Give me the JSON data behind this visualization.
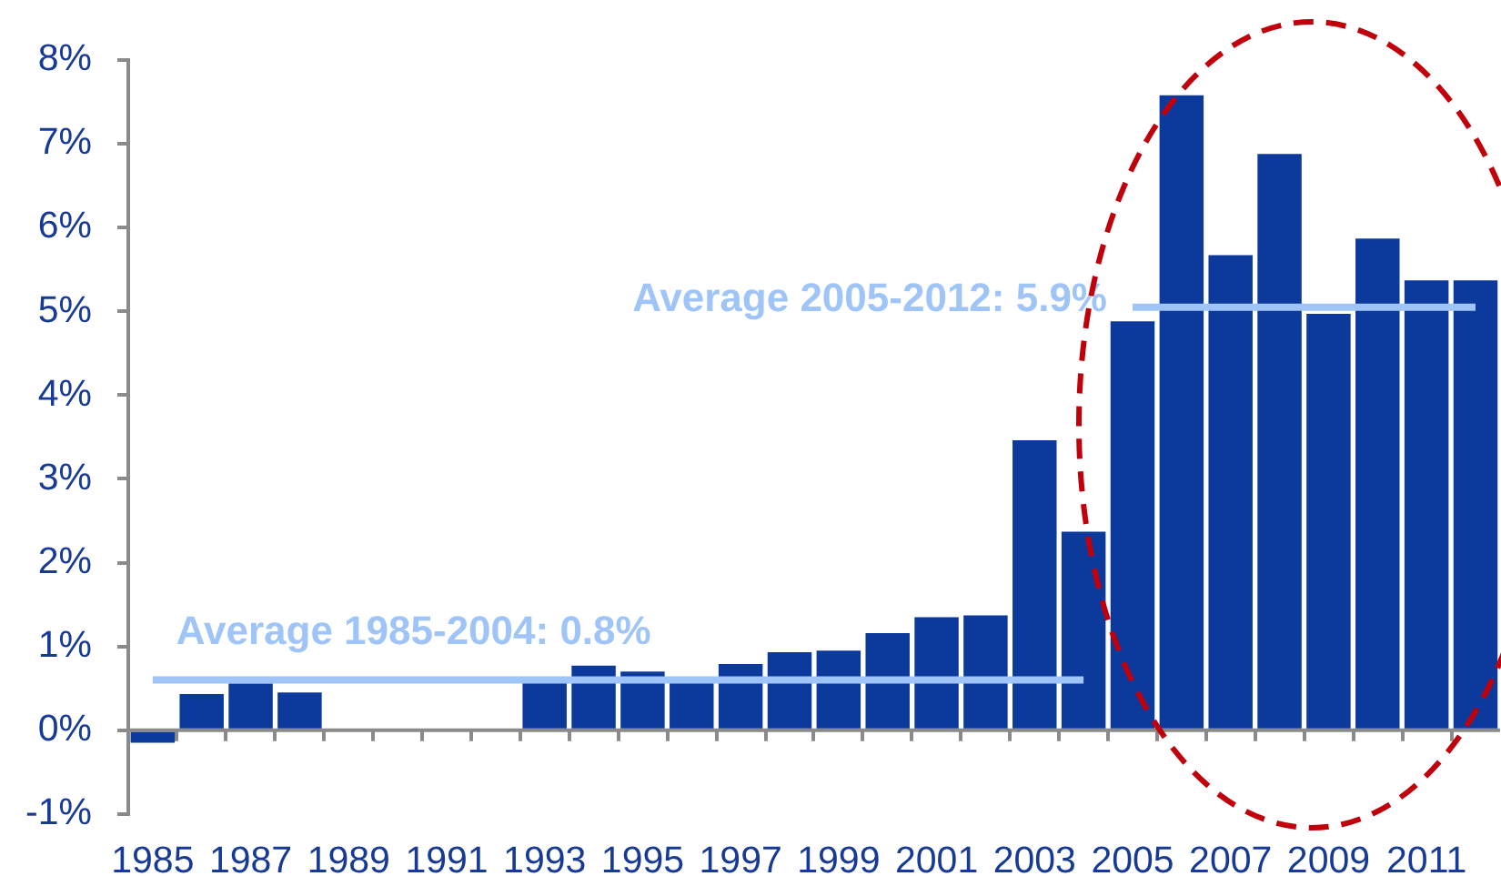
{
  "chart_data": {
    "type": "bar",
    "categories": [
      "1985",
      null,
      "1987",
      null,
      "1989",
      null,
      "1991",
      null,
      "1993",
      null,
      "1995",
      null,
      "1997",
      null,
      "1999",
      null,
      "2001",
      null,
      "2003",
      null,
      "2005",
      null,
      "2007",
      null,
      "2009",
      null,
      "2011",
      null
    ],
    "series": [
      {
        "type": "bar",
        "color": "#0b399c",
        "values": [
          -0.15,
          0.43,
          0.56,
          0.45,
          null,
          null,
          null,
          null,
          0.6,
          0.77,
          0.7,
          0.58,
          0.79,
          0.93,
          0.95,
          1.16,
          1.35,
          1.37,
          3.46,
          2.37,
          4.88,
          7.58,
          5.67,
          6.88,
          4.97,
          5.87,
          5.37,
          5.37
        ]
      },
      {
        "type": "line",
        "name": "Average 1985-2004: 0.8%",
        "color": "#9fc5f8",
        "values": [
          0.6,
          0.6,
          0.6,
          0.6,
          0.6,
          0.6,
          0.6,
          0.6,
          0.6,
          0.6,
          0.6,
          0.6,
          0.6,
          0.6,
          0.6,
          0.6,
          0.6,
          0.6,
          0.6,
          0.6,
          null,
          null,
          null,
          null,
          null,
          null,
          null,
          null
        ]
      },
      {
        "type": "line",
        "name": "Average 2005-2012: 5.9%",
        "color": "#9fc5f8",
        "values": [
          null,
          null,
          null,
          null,
          null,
          null,
          null,
          null,
          null,
          null,
          null,
          null,
          null,
          null,
          null,
          null,
          null,
          null,
          null,
          null,
          5.05,
          5.05,
          5.05,
          5.05,
          5.05,
          5.05,
          5.05,
          5.05
        ]
      }
    ],
    "ylim": [
      -1,
      8
    ],
    "yticks": [
      {
        "value": -1,
        "label": "-1%"
      },
      {
        "value": 0,
        "label": "0%"
      },
      {
        "value": 1,
        "label": "1%"
      },
      {
        "value": 2,
        "label": "2%"
      },
      {
        "value": 3,
        "label": "3%"
      },
      {
        "value": 4,
        "label": "4%"
      },
      {
        "value": 5,
        "label": "5%"
      },
      {
        "value": 6,
        "label": "6%"
      },
      {
        "value": 7,
        "label": "7%"
      },
      {
        "value": 8,
        "label": "8%"
      }
    ],
    "marker": "none"
  }
}
